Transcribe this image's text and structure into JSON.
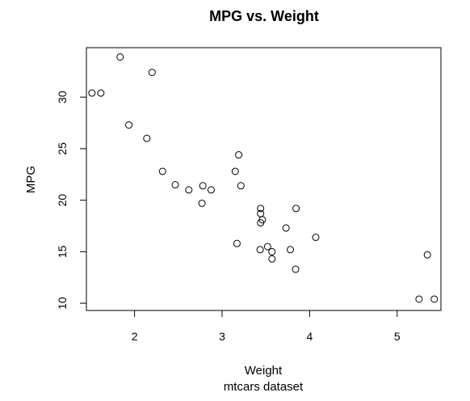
{
  "chart_data": {
    "type": "scatter",
    "title": "MPG vs. Weight",
    "xlabel": "Weight",
    "ylabel": "MPG",
    "subtitle": "mtcars dataset",
    "xlim": [
      1.45,
      5.5
    ],
    "ylim": [
      9.3,
      34.8
    ],
    "x_ticks": [
      2,
      3,
      4,
      5
    ],
    "y_ticks": [
      10,
      15,
      20,
      25,
      30
    ],
    "grid": false,
    "legend": "none",
    "marker": "open-circle",
    "colors": {
      "points": "#000000",
      "axes": "#000000",
      "background": "#ffffff"
    },
    "points": [
      {
        "x": 1.513,
        "y": 30.4
      },
      {
        "x": 1.615,
        "y": 30.4
      },
      {
        "x": 1.835,
        "y": 33.9
      },
      {
        "x": 1.935,
        "y": 27.3
      },
      {
        "x": 2.14,
        "y": 26.0
      },
      {
        "x": 2.2,
        "y": 32.4
      },
      {
        "x": 2.32,
        "y": 22.8
      },
      {
        "x": 2.465,
        "y": 21.5
      },
      {
        "x": 2.62,
        "y": 21.0
      },
      {
        "x": 2.77,
        "y": 19.7
      },
      {
        "x": 2.78,
        "y": 21.4
      },
      {
        "x": 2.875,
        "y": 21.0
      },
      {
        "x": 3.15,
        "y": 22.8
      },
      {
        "x": 3.17,
        "y": 15.8
      },
      {
        "x": 3.19,
        "y": 24.4
      },
      {
        "x": 3.215,
        "y": 21.4
      },
      {
        "x": 3.435,
        "y": 15.2
      },
      {
        "x": 3.44,
        "y": 18.7
      },
      {
        "x": 3.44,
        "y": 19.2
      },
      {
        "x": 3.44,
        "y": 17.8
      },
      {
        "x": 3.46,
        "y": 18.1
      },
      {
        "x": 3.52,
        "y": 15.5
      },
      {
        "x": 3.57,
        "y": 15.0
      },
      {
        "x": 3.57,
        "y": 14.3
      },
      {
        "x": 3.73,
        "y": 17.3
      },
      {
        "x": 3.78,
        "y": 15.2
      },
      {
        "x": 3.84,
        "y": 13.3
      },
      {
        "x": 3.845,
        "y": 19.2
      },
      {
        "x": 4.07,
        "y": 16.4
      },
      {
        "x": 5.25,
        "y": 10.4
      },
      {
        "x": 5.345,
        "y": 14.7
      },
      {
        "x": 5.424,
        "y": 10.4
      }
    ]
  }
}
